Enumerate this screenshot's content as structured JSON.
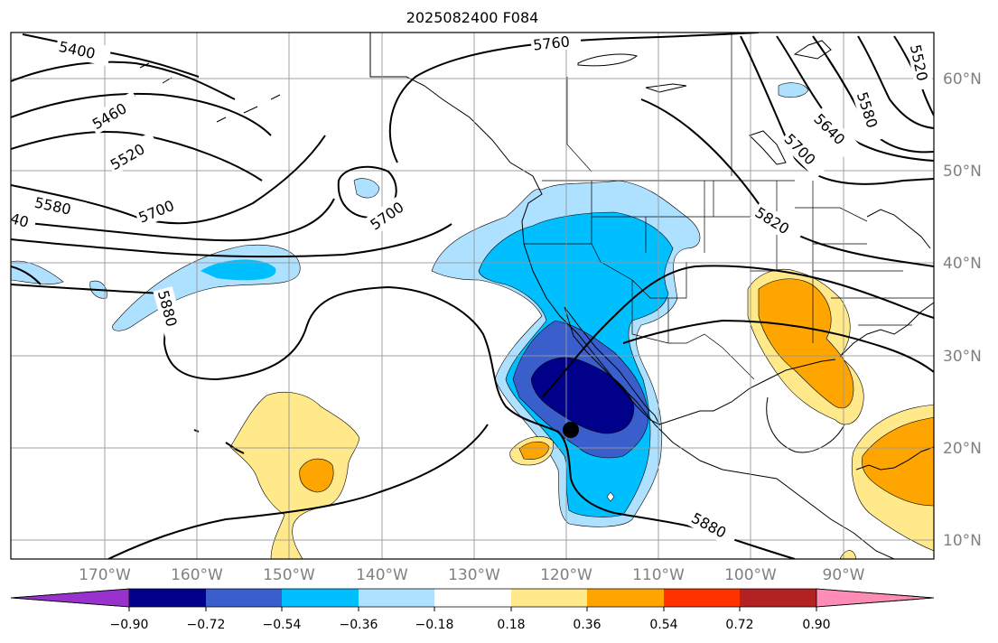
{
  "title": "2025082400 F084",
  "lon_ticks": [
    "170°W",
    "160°W",
    "150°W",
    "140°W",
    "130°W",
    "120°W",
    "110°W",
    "100°W",
    "90°W"
  ],
  "lat_ticks": [
    "60°N",
    "50°N",
    "40°N",
    "30°N",
    "20°N",
    "10°N"
  ],
  "colorbar": {
    "labels": [
      "−0.90",
      "−0.72",
      "−0.54",
      "−0.36",
      "−0.18",
      "0.18",
      "0.36",
      "0.54",
      "0.72",
      "0.90"
    ],
    "colors": [
      "#9932CC",
      "#00008B",
      "#3A5FCD",
      "#00BFFF",
      "#AEE0FF",
      "#FFFFFF",
      "#FFE98A",
      "#FFA500",
      "#FF3300",
      "#B22222",
      "#FF8CB4"
    ]
  },
  "contour_labels": [
    {
      "text": "5400"
    },
    {
      "text": "5460"
    },
    {
      "text": "5520"
    },
    {
      "text": "5580"
    },
    {
      "text": "5700"
    },
    {
      "text": "5760"
    },
    {
      "text": "5700"
    },
    {
      "text": "5880"
    },
    {
      "text": "5820"
    },
    {
      "text": "5580"
    },
    {
      "text": "5640"
    },
    {
      "text": "5700"
    },
    {
      "text": "5520"
    },
    {
      "text": "5880"
    },
    {
      "text": "40"
    }
  ],
  "marker": {
    "name": "storm-center-marker"
  }
}
